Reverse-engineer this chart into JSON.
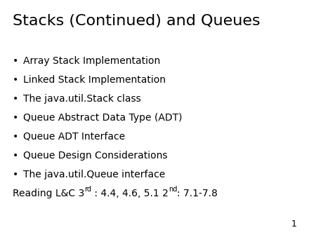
{
  "title": "Stacks (Continued) and Queues",
  "bullet_items": [
    "Array Stack Implementation",
    "Linked Stack Implementation",
    "The java.util.Stack class",
    "Queue Abstract Data Type (ADT)",
    "Queue ADT Interface",
    "Queue Design Considerations",
    "The java.util.Queue interface"
  ],
  "reading_parts": [
    {
      "text": "Reading L&C 3",
      "super": false
    },
    {
      "text": "rd",
      "super": true
    },
    {
      "text": " : 4.4, 4.6, 5.1 2",
      "super": false
    },
    {
      "text": "nd",
      "super": true
    },
    {
      "text": ": 7.1-7.8",
      "super": false
    }
  ],
  "page_number": "1",
  "background_color": "#ffffff",
  "text_color": "#000000",
  "title_fontsize": 16,
  "bullet_fontsize": 10,
  "reading_fontsize": 10,
  "super_fontsize": 7,
  "page_number_fontsize": 9,
  "bullet_char": "•"
}
